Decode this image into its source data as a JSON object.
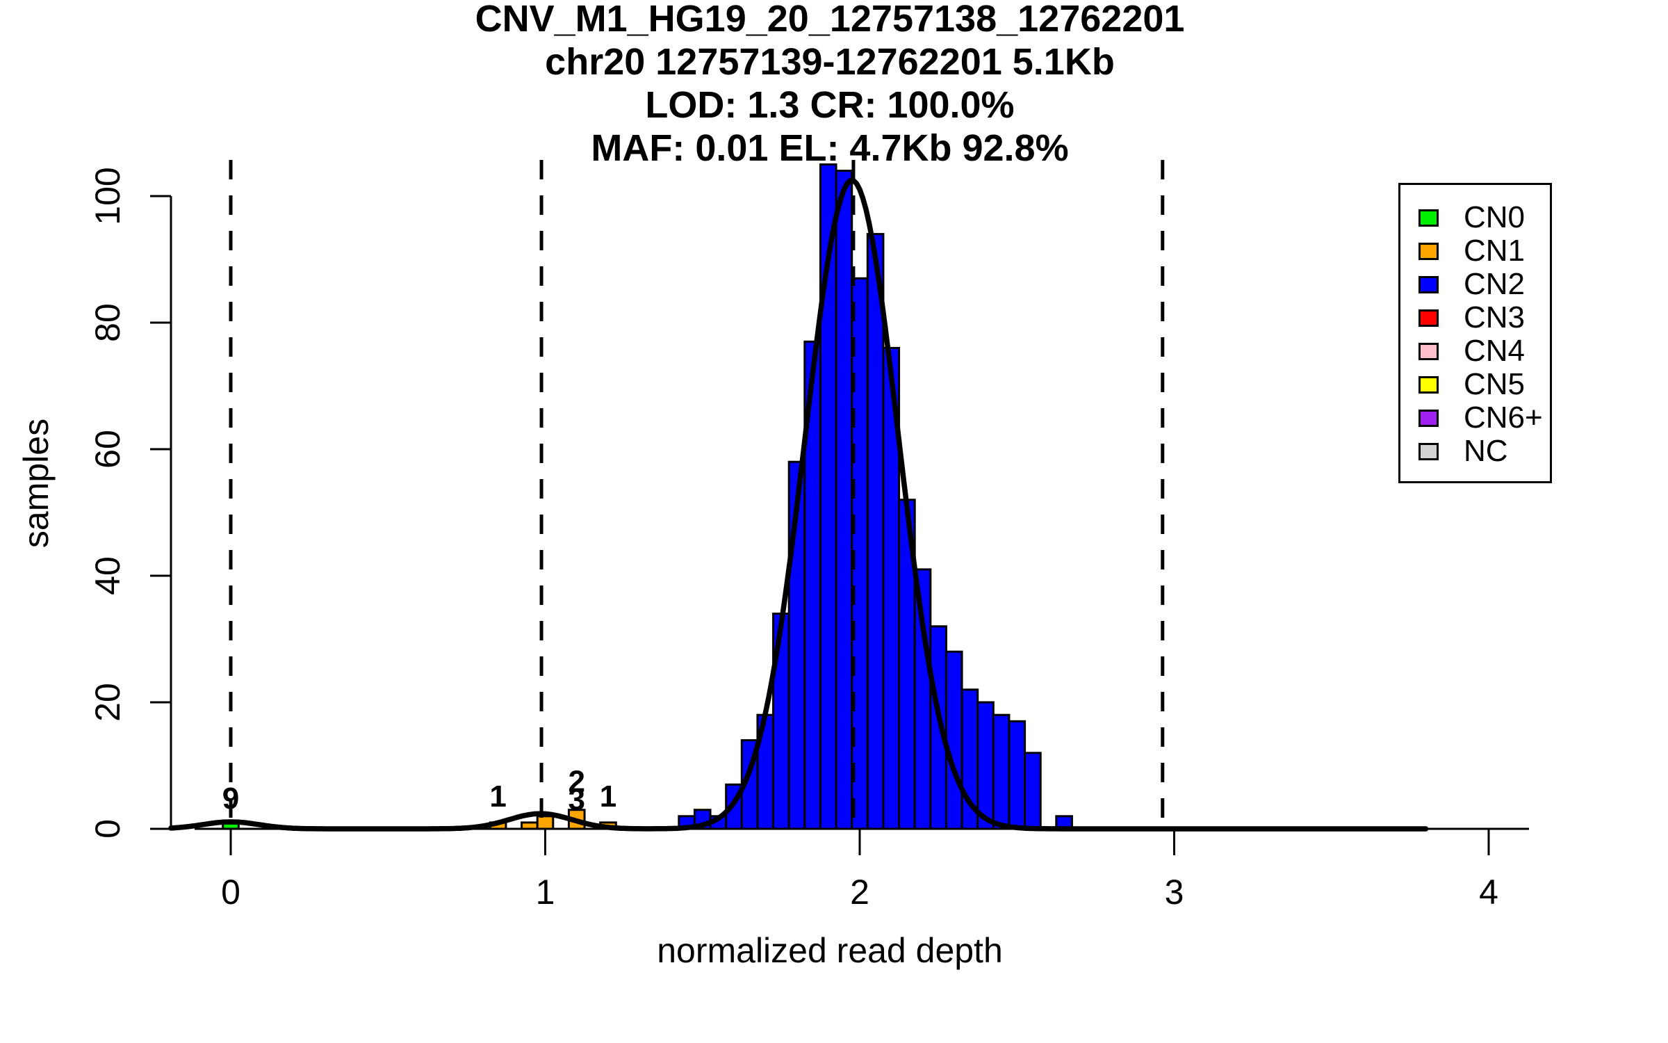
{
  "title": {
    "line1": "CNV_M1_HG19_20_12757138_12762201",
    "line2": "chr20 12757139-12762201 5.1Kb",
    "line3": "LOD: 1.3 CR: 100.0%",
    "line4": "MAF: 0.01 EL: 4.7Kb 92.8%"
  },
  "legend": {
    "items": [
      {
        "label": "CN0",
        "color": "#00EE00"
      },
      {
        "label": "CN1",
        "color": "#FFA500"
      },
      {
        "label": "CN2",
        "color": "#0000FF"
      },
      {
        "label": "CN3",
        "color": "#FF0000"
      },
      {
        "label": "CN4",
        "color": "#FFC0CB"
      },
      {
        "label": "CN5",
        "color": "#FFFF00"
      },
      {
        "label": "CN6+",
        "color": "#A020F0"
      },
      {
        "label": "NC",
        "color": "#D3D3D3"
      }
    ]
  },
  "chart_data": {
    "type": "bar",
    "subtype": "histogram-with-density",
    "title": "CNV_M1_HG19_20_12757138_12762201",
    "xlabel": "normalized read depth",
    "ylabel": "samples",
    "x_ticks": [
      "0",
      "1",
      "2",
      "3",
      "4"
    ],
    "x_tick_values": [
      0,
      1,
      2,
      3,
      4
    ],
    "y_ticks": [
      "0",
      "20",
      "40",
      "60",
      "80",
      "100"
    ],
    "y_tick_values": [
      0,
      20,
      40,
      60,
      80,
      100
    ],
    "xlim": [
      -0.2,
      4.15
    ],
    "ylim": [
      0,
      107
    ],
    "grid": false,
    "legend_position": "top-right",
    "bin_width": 0.05,
    "series": [
      {
        "name": "CN0",
        "color": "#00EE00",
        "bins": [
          {
            "x": 0.0,
            "count": 1.3
          }
        ]
      },
      {
        "name": "CN1",
        "color": "#FFA500",
        "bins": [
          {
            "x": 0.85,
            "count": 1
          },
          {
            "x": 0.95,
            "count": 1
          },
          {
            "x": 1.0,
            "count": 2
          },
          {
            "x": 1.1,
            "count": 3
          },
          {
            "x": 1.2,
            "count": 1
          }
        ]
      },
      {
        "name": "CN2",
        "color": "#0000FF",
        "bins": [
          {
            "x": 1.45,
            "count": 2
          },
          {
            "x": 1.5,
            "count": 3
          },
          {
            "x": 1.55,
            "count": 2
          },
          {
            "x": 1.6,
            "count": 7
          },
          {
            "x": 1.65,
            "count": 14
          },
          {
            "x": 1.7,
            "count": 18
          },
          {
            "x": 1.75,
            "count": 34
          },
          {
            "x": 1.8,
            "count": 58
          },
          {
            "x": 1.85,
            "count": 77
          },
          {
            "x": 1.9,
            "count": 105
          },
          {
            "x": 1.95,
            "count": 104
          },
          {
            "x": 2.0,
            "count": 87
          },
          {
            "x": 2.05,
            "count": 94
          },
          {
            "x": 2.1,
            "count": 76
          },
          {
            "x": 2.15,
            "count": 52
          },
          {
            "x": 2.2,
            "count": 41
          },
          {
            "x": 2.25,
            "count": 32
          },
          {
            "x": 2.3,
            "count": 28
          },
          {
            "x": 2.35,
            "count": 22
          },
          {
            "x": 2.4,
            "count": 20
          },
          {
            "x": 2.45,
            "count": 18
          },
          {
            "x": 2.5,
            "count": 17
          },
          {
            "x": 2.55,
            "count": 12
          },
          {
            "x": 2.65,
            "count": 2
          }
        ]
      }
    ],
    "density_curve": {
      "color": "#000000",
      "x_range": [
        -0.19,
        3.8
      ],
      "components": [
        {
          "amplitude": 1.1,
          "mean": 0.0,
          "sigma": 0.09
        },
        {
          "amplitude": 2.4,
          "mean": 0.985,
          "sigma": 0.1
        },
        {
          "amplitude": 102.5,
          "mean": 1.975,
          "sigma": 0.148
        }
      ]
    },
    "dashed_lines_x": [
      0.0,
      0.988,
      1.98,
      2.963
    ],
    "annotations": [
      {
        "label": "9",
        "x": 0.0,
        "baseline_count": 3.2
      },
      {
        "label": "1",
        "x": 0.85,
        "baseline_count": 3.5
      },
      {
        "label": "2",
        "x": 1.1,
        "baseline_count": 5.9
      },
      {
        "label": "3",
        "x": 1.1,
        "baseline_count": 3.0
      },
      {
        "label": "1",
        "x": 1.2,
        "baseline_count": 3.5
      }
    ]
  }
}
